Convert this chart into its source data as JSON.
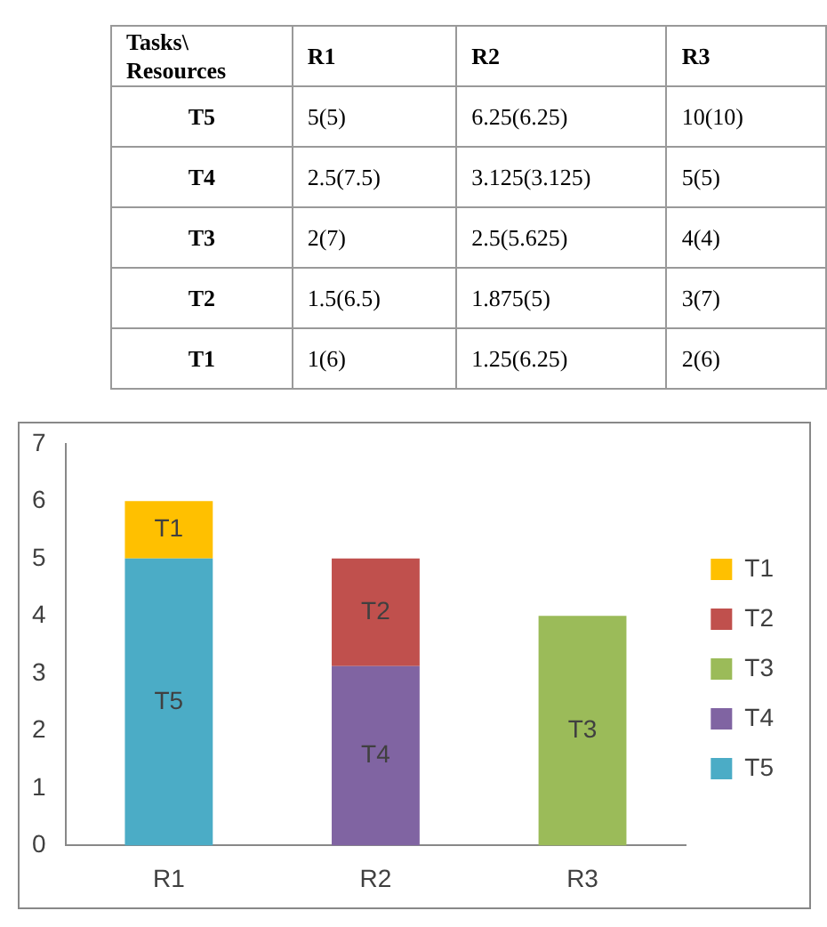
{
  "chart_data": [
    {
      "type": "other",
      "categories": [
        "Tasks\\ Resources",
        "R1",
        "R2",
        "R3"
      ],
      "y_categories": [
        "T5",
        "T4",
        "T3",
        "T2",
        "T1"
      ],
      "cell_labels": [
        [
          "5(5)",
          "6.25(6.25)",
          "10(10)"
        ],
        [
          "2.5(7.5)",
          "3.125(3.125)",
          "5(5)"
        ],
        [
          "2(7)",
          "2.5(5.625)",
          "4(4)"
        ],
        [
          "1.5(6.5)",
          "1.875(5)",
          "3(7)"
        ],
        [
          "1(6)",
          "1.25(6.25)",
          "2(6)"
        ]
      ]
    },
    {
      "type": "bar",
      "stacked": true,
      "categories": [
        "R1",
        "R2",
        "R3"
      ],
      "ylim": [
        0,
        7
      ],
      "yticks": [
        0,
        1,
        2,
        3,
        4,
        5,
        6,
        7
      ],
      "grid": false,
      "legend": "right",
      "series": [
        {
          "name": "T5",
          "color": "#4bacc6",
          "values": [
            5,
            null,
            null
          ]
        },
        {
          "name": "T4",
          "color": "#8064a2",
          "values": [
            null,
            3.125,
            null
          ]
        },
        {
          "name": "T3",
          "color": "#9bbb59",
          "values": [
            null,
            null,
            4
          ]
        },
        {
          "name": "T2",
          "color": "#c0504d",
          "values": [
            null,
            1.875,
            null
          ]
        },
        {
          "name": "T1",
          "color": "#ffc000",
          "values": [
            1,
            null,
            null
          ]
        }
      ]
    }
  ]
}
